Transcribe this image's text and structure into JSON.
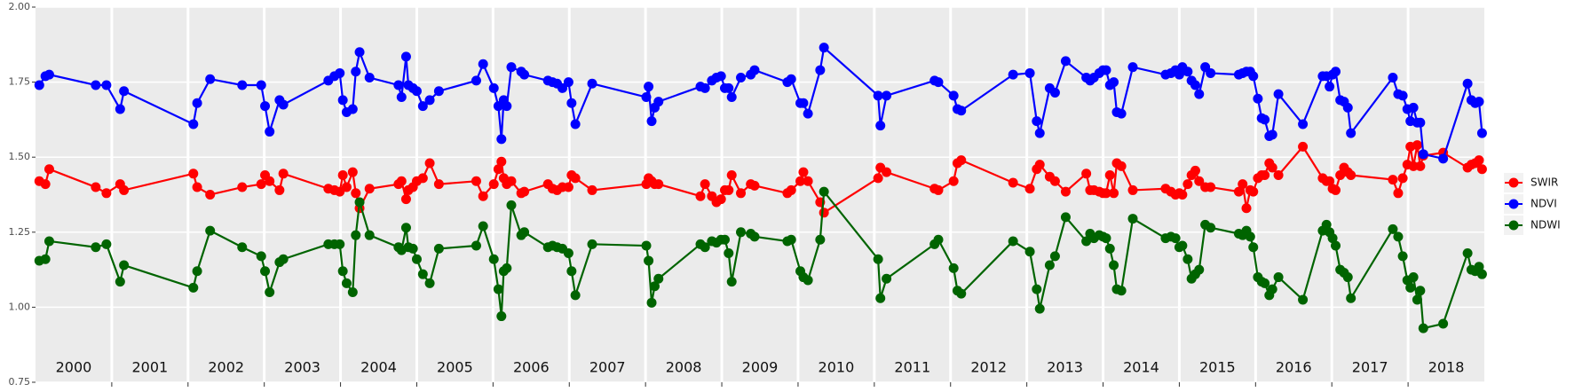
{
  "chart_data": {
    "type": "line",
    "x": [
      2000.05,
      2000.13,
      2000.18,
      2000.79,
      2000.93,
      2001.11,
      2001.16,
      2002.07,
      2002.12,
      2002.29,
      2002.71,
      2002.96,
      2003.01,
      2003.07,
      2003.2,
      2003.25,
      2003.84,
      2003.92,
      2003.99,
      2004.03,
      2004.08,
      2004.16,
      2004.2,
      2004.25,
      2004.38,
      2004.76,
      2004.8,
      2004.86,
      2004.89,
      2004.95,
      2005.0,
      2005.08,
      2005.17,
      2005.29,
      2005.78,
      2005.87,
      2006.01,
      2006.07,
      2006.11,
      2006.14,
      2006.18,
      2006.24,
      2006.37,
      2006.41,
      2006.72,
      2006.78,
      2006.84,
      2006.91,
      2006.99,
      2007.03,
      2007.08,
      2007.3,
      2008.01,
      2008.04,
      2008.08,
      2008.12,
      2008.17,
      2008.72,
      2008.78,
      2008.87,
      2008.93,
      2008.99,
      2009.04,
      2009.09,
      2009.13,
      2009.25,
      2009.38,
      2009.43,
      2009.86,
      2009.91,
      2010.03,
      2010.07,
      2010.13,
      2010.29,
      2010.34,
      2011.05,
      2011.08,
      2011.16,
      2011.79,
      2011.84,
      2012.04,
      2012.09,
      2012.14,
      2012.82,
      2013.04,
      2013.13,
      2013.17,
      2013.3,
      2013.37,
      2013.51,
      2013.78,
      2013.83,
      2013.88,
      2013.95,
      2014.0,
      2014.04,
      2014.09,
      2014.14,
      2014.18,
      2014.24,
      2014.39,
      2014.82,
      2014.89,
      2014.95,
      2015.0,
      2015.04,
      2015.11,
      2015.16,
      2015.21,
      2015.26,
      2015.34,
      2015.41,
      2015.78,
      2015.83,
      2015.88,
      2015.93,
      2015.97,
      2016.03,
      2016.08,
      2016.12,
      2016.18,
      2016.22,
      2016.3,
      2016.62,
      2016.88,
      2016.93,
      2016.97,
      2017.01,
      2017.05,
      2017.11,
      2017.16,
      2017.21,
      2017.25,
      2017.8,
      2017.87,
      2017.93,
      2017.99,
      2018.03,
      2018.07,
      2018.12,
      2018.16,
      2018.2,
      2018.46,
      2018.78,
      2018.83,
      2018.88,
      2018.93,
      2018.97
    ],
    "series": [
      {
        "name": "SWIR",
        "color": "#ff0000",
        "values": [
          1.42,
          1.41,
          1.46,
          1.4,
          1.38,
          1.41,
          1.39,
          1.445,
          1.4,
          1.375,
          1.4,
          1.41,
          1.44,
          1.42,
          1.39,
          1.445,
          1.395,
          1.39,
          1.385,
          1.44,
          1.4,
          1.45,
          1.38,
          1.33,
          1.395,
          1.41,
          1.42,
          1.36,
          1.39,
          1.4,
          1.42,
          1.43,
          1.48,
          1.41,
          1.42,
          1.37,
          1.41,
          1.46,
          1.485,
          1.43,
          1.41,
          1.42,
          1.38,
          1.385,
          1.41,
          1.395,
          1.39,
          1.4,
          1.4,
          1.44,
          1.43,
          1.39,
          1.41,
          1.43,
          1.42,
          1.41,
          1.41,
          1.37,
          1.41,
          1.37,
          1.35,
          1.36,
          1.39,
          1.39,
          1.44,
          1.38,
          1.41,
          1.405,
          1.38,
          1.39,
          1.42,
          1.45,
          1.42,
          1.35,
          1.315,
          1.43,
          1.465,
          1.45,
          1.395,
          1.39,
          1.42,
          1.48,
          1.49,
          1.415,
          1.395,
          1.46,
          1.475,
          1.435,
          1.42,
          1.385,
          1.445,
          1.39,
          1.39,
          1.385,
          1.38,
          1.38,
          1.44,
          1.38,
          1.48,
          1.47,
          1.39,
          1.395,
          1.385,
          1.375,
          1.38,
          1.375,
          1.41,
          1.44,
          1.455,
          1.42,
          1.4,
          1.4,
          1.385,
          1.41,
          1.33,
          1.39,
          1.385,
          1.43,
          1.44,
          1.44,
          1.48,
          1.465,
          1.44,
          1.535,
          1.43,
          1.42,
          1.42,
          1.395,
          1.39,
          1.44,
          1.465,
          1.45,
          1.44,
          1.425,
          1.38,
          1.43,
          1.475,
          1.535,
          1.47,
          1.54,
          1.47,
          1.505,
          1.515,
          1.465,
          1.475,
          1.48,
          1.49,
          1.46
        ]
      },
      {
        "name": "NDVI",
        "color": "#0000ff",
        "values": [
          1.74,
          1.77,
          1.775,
          1.74,
          1.74,
          1.66,
          1.72,
          1.61,
          1.68,
          1.76,
          1.74,
          1.74,
          1.67,
          1.585,
          1.69,
          1.675,
          1.755,
          1.77,
          1.78,
          1.69,
          1.65,
          1.66,
          1.785,
          1.85,
          1.765,
          1.74,
          1.7,
          1.835,
          1.74,
          1.73,
          1.72,
          1.67,
          1.69,
          1.72,
          1.755,
          1.81,
          1.73,
          1.67,
          1.56,
          1.69,
          1.67,
          1.8,
          1.785,
          1.775,
          1.755,
          1.75,
          1.745,
          1.73,
          1.75,
          1.68,
          1.61,
          1.745,
          1.7,
          1.735,
          1.62,
          1.665,
          1.685,
          1.735,
          1.73,
          1.755,
          1.765,
          1.77,
          1.73,
          1.73,
          1.7,
          1.765,
          1.775,
          1.79,
          1.75,
          1.76,
          1.68,
          1.68,
          1.645,
          1.79,
          1.865,
          1.705,
          1.605,
          1.705,
          1.755,
          1.75,
          1.705,
          1.66,
          1.655,
          1.775,
          1.78,
          1.62,
          1.58,
          1.73,
          1.715,
          1.82,
          1.765,
          1.755,
          1.765,
          1.78,
          1.79,
          1.79,
          1.74,
          1.75,
          1.65,
          1.645,
          1.8,
          1.775,
          1.78,
          1.79,
          1.775,
          1.8,
          1.785,
          1.755,
          1.74,
          1.71,
          1.8,
          1.78,
          1.775,
          1.78,
          1.785,
          1.785,
          1.77,
          1.695,
          1.63,
          1.625,
          1.57,
          1.575,
          1.71,
          1.61,
          1.77,
          1.77,
          1.735,
          1.775,
          1.785,
          1.69,
          1.685,
          1.665,
          1.58,
          1.765,
          1.71,
          1.705,
          1.66,
          1.62,
          1.665,
          1.615,
          1.615,
          1.51,
          1.495,
          1.745,
          1.69,
          1.68,
          1.685,
          1.58
        ]
      },
      {
        "name": "NDWI",
        "color": "#006400",
        "values": [
          1.155,
          1.16,
          1.22,
          1.2,
          1.21,
          1.085,
          1.14,
          1.065,
          1.12,
          1.255,
          1.2,
          1.17,
          1.12,
          1.05,
          1.15,
          1.16,
          1.21,
          1.21,
          1.21,
          1.12,
          1.08,
          1.05,
          1.24,
          1.35,
          1.24,
          1.2,
          1.19,
          1.265,
          1.2,
          1.195,
          1.16,
          1.11,
          1.08,
          1.195,
          1.205,
          1.27,
          1.16,
          1.06,
          0.97,
          1.12,
          1.13,
          1.34,
          1.24,
          1.25,
          1.2,
          1.205,
          1.2,
          1.195,
          1.18,
          1.12,
          1.04,
          1.21,
          1.205,
          1.155,
          1.015,
          1.07,
          1.095,
          1.21,
          1.2,
          1.22,
          1.215,
          1.225,
          1.225,
          1.18,
          1.085,
          1.25,
          1.245,
          1.235,
          1.22,
          1.225,
          1.12,
          1.1,
          1.09,
          1.225,
          1.385,
          1.16,
          1.03,
          1.095,
          1.21,
          1.225,
          1.13,
          1.055,
          1.045,
          1.22,
          1.185,
          1.06,
          0.995,
          1.14,
          1.17,
          1.3,
          1.22,
          1.245,
          1.23,
          1.24,
          1.235,
          1.23,
          1.195,
          1.14,
          1.06,
          1.055,
          1.295,
          1.23,
          1.235,
          1.23,
          1.2,
          1.205,
          1.16,
          1.095,
          1.11,
          1.125,
          1.275,
          1.265,
          1.245,
          1.24,
          1.255,
          1.235,
          1.2,
          1.1,
          1.085,
          1.08,
          1.04,
          1.06,
          1.1,
          1.025,
          1.255,
          1.275,
          1.25,
          1.23,
          1.205,
          1.125,
          1.115,
          1.1,
          1.03,
          1.26,
          1.235,
          1.17,
          1.09,
          1.065,
          1.1,
          1.025,
          1.055,
          0.93,
          0.945,
          1.18,
          1.125,
          1.12,
          1.135,
          1.11
        ]
      }
    ],
    "xlim": [
      2000,
      2019
    ],
    "xticks": [
      2001,
      2002,
      2003,
      2004,
      2005,
      2006,
      2007,
      2008,
      2009,
      2010,
      2011,
      2012,
      2013,
      2014,
      2015,
      2016,
      2017,
      2018
    ],
    "year_labels": [
      "2000",
      "2001",
      "2002",
      "2003",
      "2004",
      "2005",
      "2006",
      "2007",
      "2008",
      "2009",
      "2010",
      "2011",
      "2012",
      "2013",
      "2014",
      "2015",
      "2016",
      "2017",
      "2018"
    ],
    "ylim": [
      0.75,
      2.0
    ],
    "yticks": [
      0.75,
      {
        "value": 1.0,
        "label": "1.00"
      },
      1.25,
      {
        "value": 1.5,
        "label": "1.50"
      },
      1.75,
      {
        "value": 2.0,
        "label": "2.00"
      }
    ],
    "grid": true,
    "legend": "right"
  }
}
